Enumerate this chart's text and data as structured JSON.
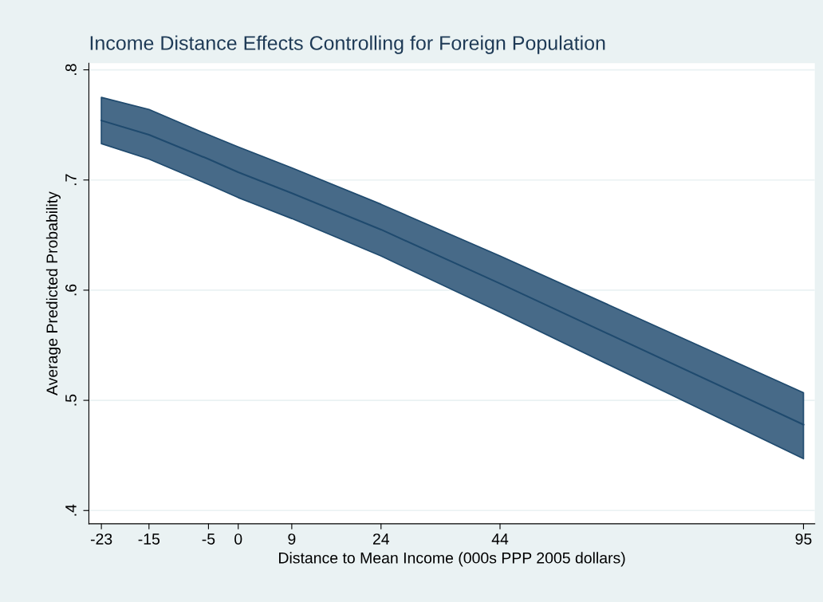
{
  "chart_data": {
    "type": "line",
    "title": "Income Distance Effects Controlling for Foreign Population",
    "xlabel": "Distance to Mean Income (000s PPP 2005 dollars)",
    "ylabel": "Average Predicted Probability",
    "series": [
      {
        "color": "#1f4a6e",
        "x": [
          -23,
          -15,
          -5,
          0,
          9,
          24,
          44,
          95
        ],
        "values": [
          0.754,
          0.741,
          0.719,
          0.707,
          0.688,
          0.655,
          0.606,
          0.478
        ],
        "lower": [
          0.733,
          0.719,
          0.696,
          0.684,
          0.665,
          0.631,
          0.58,
          0.447
        ],
        "upper": [
          0.775,
          0.764,
          0.741,
          0.73,
          0.711,
          0.678,
          0.631,
          0.507
        ]
      }
    ],
    "xlim": [
      -25.1,
      96.9
    ],
    "ylim": [
      0.388,
      0.806
    ],
    "xticks": [
      -23,
      -15,
      -5,
      0,
      9,
      24,
      44,
      95
    ],
    "yticks": [
      {
        "value": 0.4,
        "label": ".4"
      },
      {
        "value": 0.5,
        "label": ".5"
      },
      {
        "value": 0.6,
        "label": ".6"
      },
      {
        "value": 0.7,
        "label": ".7"
      },
      {
        "value": 0.8,
        "label": ".8"
      }
    ],
    "grid": "y",
    "marker": "none",
    "line_style": "solid"
  }
}
